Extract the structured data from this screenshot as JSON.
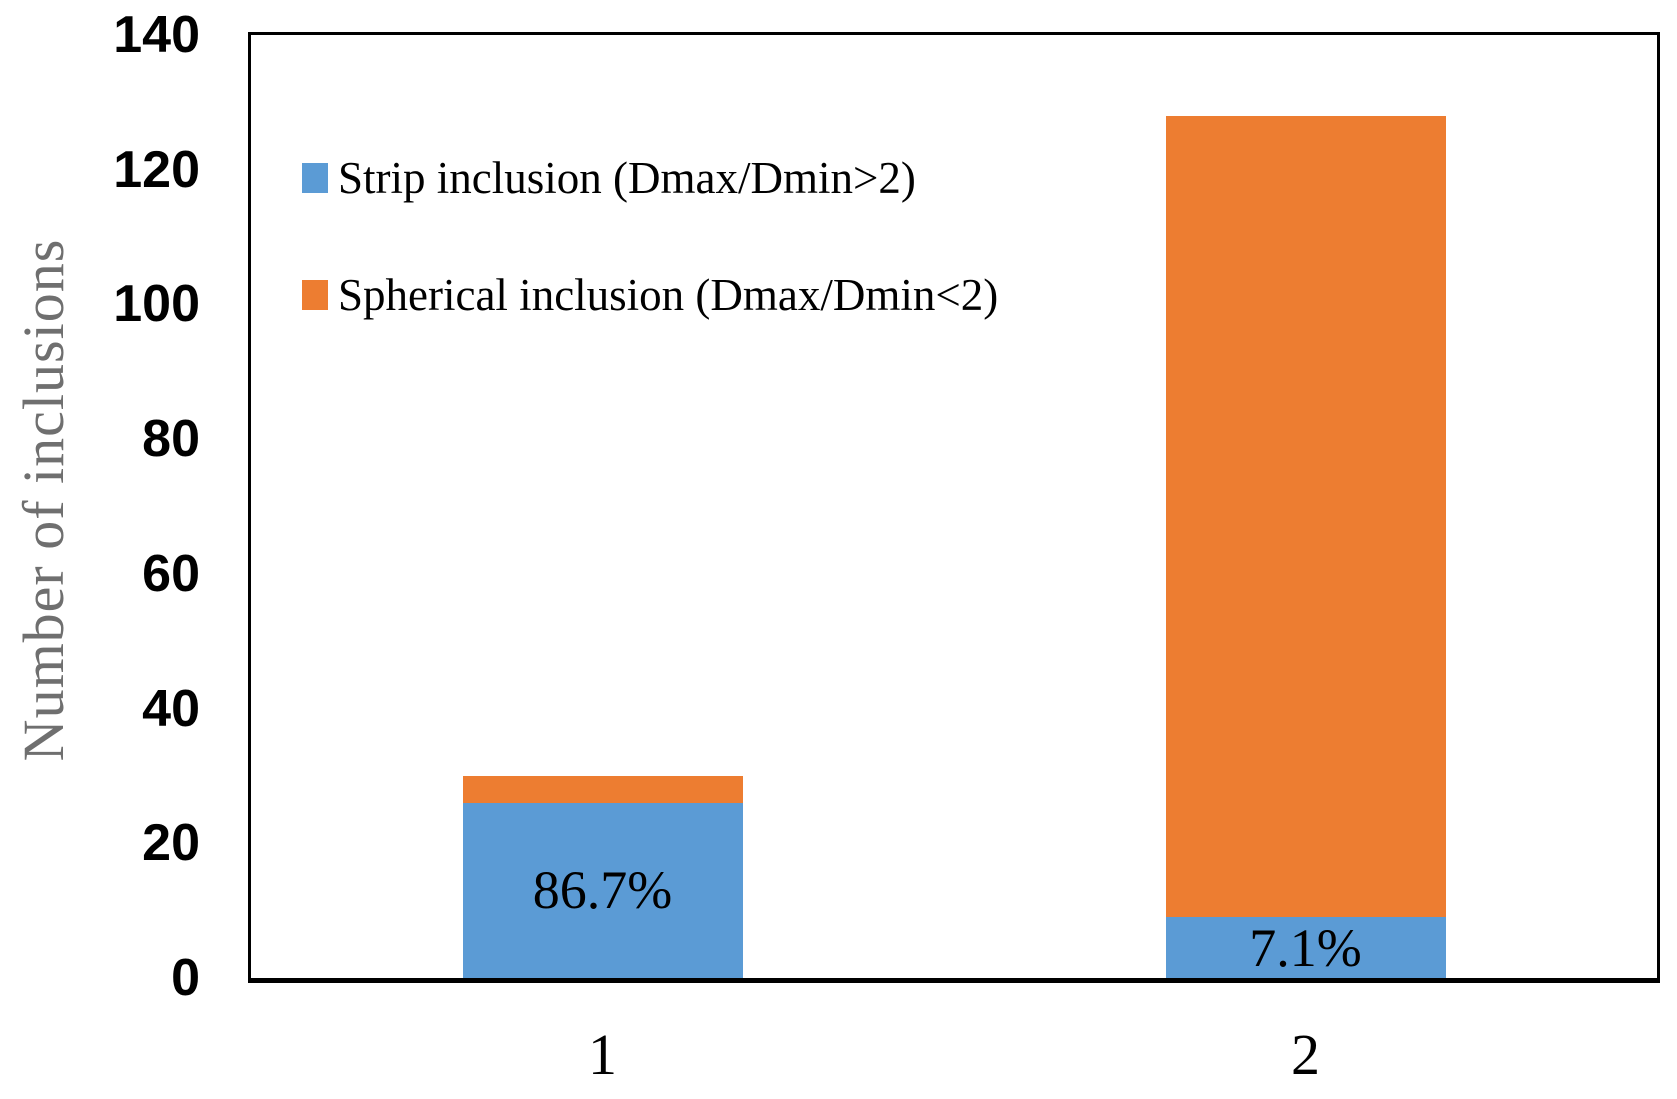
{
  "chart_data": {
    "type": "bar",
    "stacked": true,
    "title": "",
    "xlabel": "",
    "ylabel": "Number of inclusions",
    "categories": [
      "1",
      "2"
    ],
    "ylim": [
      0,
      140
    ],
    "yticks": [
      0,
      20,
      40,
      60,
      80,
      100,
      120,
      140
    ],
    "grid": false,
    "legend_position": "upper-left inside plot area",
    "series": [
      {
        "key": "strip",
        "name": "Strip inclusion (Dmax/Dmin>2)",
        "color": "#5B9BD5",
        "values": [
          26,
          9
        ],
        "segment_labels": [
          "86.7%",
          "7.1%"
        ]
      },
      {
        "key": "spherical",
        "name": "Spherical inclusion (Dmax/Dmin<2)",
        "color": "#ED7D31",
        "values": [
          4,
          119
        ],
        "segment_labels": [
          "",
          ""
        ]
      }
    ],
    "totals": [
      30,
      128
    ]
  },
  "colors": {
    "strip_blue": "#5B9BD5",
    "spherical_orange": "#ED7D31",
    "axis_border": "#000000",
    "y_title_gray": "#6f6f6f",
    "tick_text": "#000000"
  }
}
